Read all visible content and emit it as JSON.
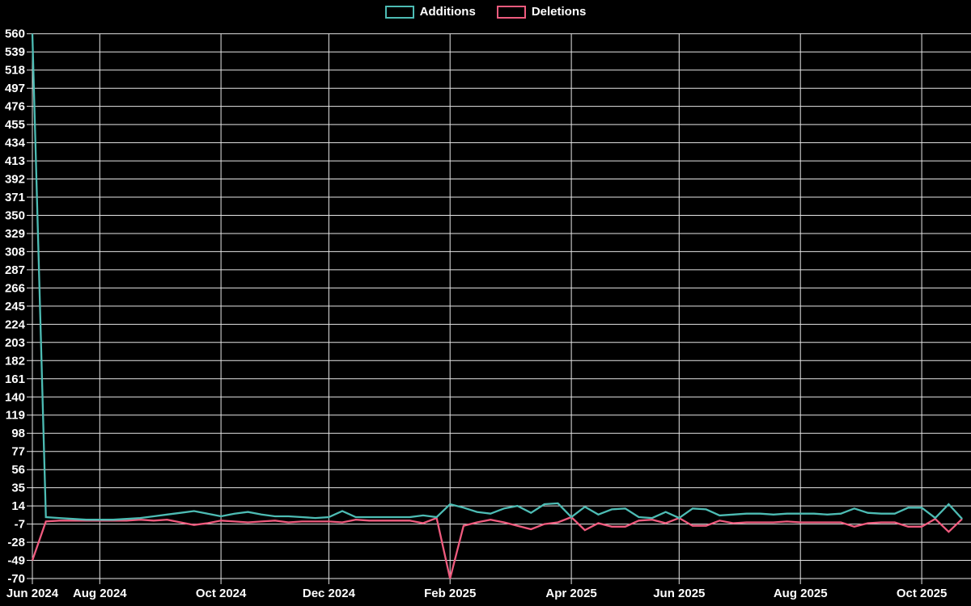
{
  "legend": {
    "items": [
      {
        "label": "Additions"
      },
      {
        "label": "Deletions"
      }
    ]
  },
  "chart_data": {
    "type": "line",
    "title": "",
    "xlabel": "",
    "ylabel": "",
    "colors": {
      "background": "#000000",
      "grid": "#e6e6e6",
      "text": "#ffffff"
    },
    "x_axis": {
      "unit": "week",
      "num_points": 70,
      "tick_labels": [
        "Jun 2024",
        "Aug 2024",
        "Oct 2024",
        "Dec 2024",
        "Feb 2025",
        "Apr 2025",
        "Jun 2025",
        "Aug 2025",
        "Oct 2025"
      ],
      "tick_week_indices": [
        0,
        5,
        14,
        22,
        31,
        40,
        48,
        57,
        66
      ]
    },
    "y_axis": {
      "min": -70,
      "max": 560,
      "step": 21,
      "tick_values": [
        560,
        539,
        518,
        497,
        476,
        455,
        434,
        413,
        392,
        371,
        350,
        329,
        308,
        287,
        266,
        245,
        224,
        203,
        182,
        161,
        140,
        119,
        98,
        77,
        56,
        35,
        14,
        -7,
        -28,
        -49,
        -70
      ]
    },
    "series": [
      {
        "name": "Additions",
        "color": "#4dbcb4",
        "values": [
          560,
          1,
          0,
          -1,
          -2,
          -2,
          -2,
          -1,
          0,
          2,
          4,
          6,
          8,
          5,
          2,
          5,
          7,
          4,
          2,
          2,
          1,
          0,
          1,
          8,
          1,
          1,
          1,
          1,
          1,
          3,
          1,
          16,
          12,
          7,
          5,
          11,
          14,
          6,
          16,
          17,
          1,
          13,
          4,
          10,
          11,
          1,
          0,
          7,
          0,
          11,
          10,
          3,
          4,
          5,
          5,
          4,
          5,
          5,
          5,
          4,
          5,
          11,
          6,
          5,
          5,
          12,
          12,
          0,
          16,
          -1
        ]
      },
      {
        "name": "Deletions",
        "color": "#ef5b7e",
        "values": [
          -49,
          -4,
          -3,
          -3,
          -3,
          -3,
          -3,
          -3,
          -2,
          -3,
          -2,
          -5,
          -8,
          -6,
          -3,
          -4,
          -5,
          -4,
          -3,
          -5,
          -4,
          -4,
          -4,
          -5,
          -2,
          -3,
          -3,
          -3,
          -3,
          -6,
          0,
          -70,
          -9,
          -5,
          -2,
          -5,
          -9,
          -13,
          -7,
          -5,
          1,
          -14,
          -6,
          -10,
          -10,
          -3,
          -2,
          -6,
          0,
          -9,
          -9,
          -3,
          -6,
          -5,
          -5,
          -5,
          -4,
          -5,
          -5,
          -5,
          -5,
          -10,
          -6,
          -5,
          -5,
          -10,
          -10,
          -1,
          -16,
          -1
        ]
      }
    ],
    "legend_position": "top-center",
    "grid": true
  }
}
